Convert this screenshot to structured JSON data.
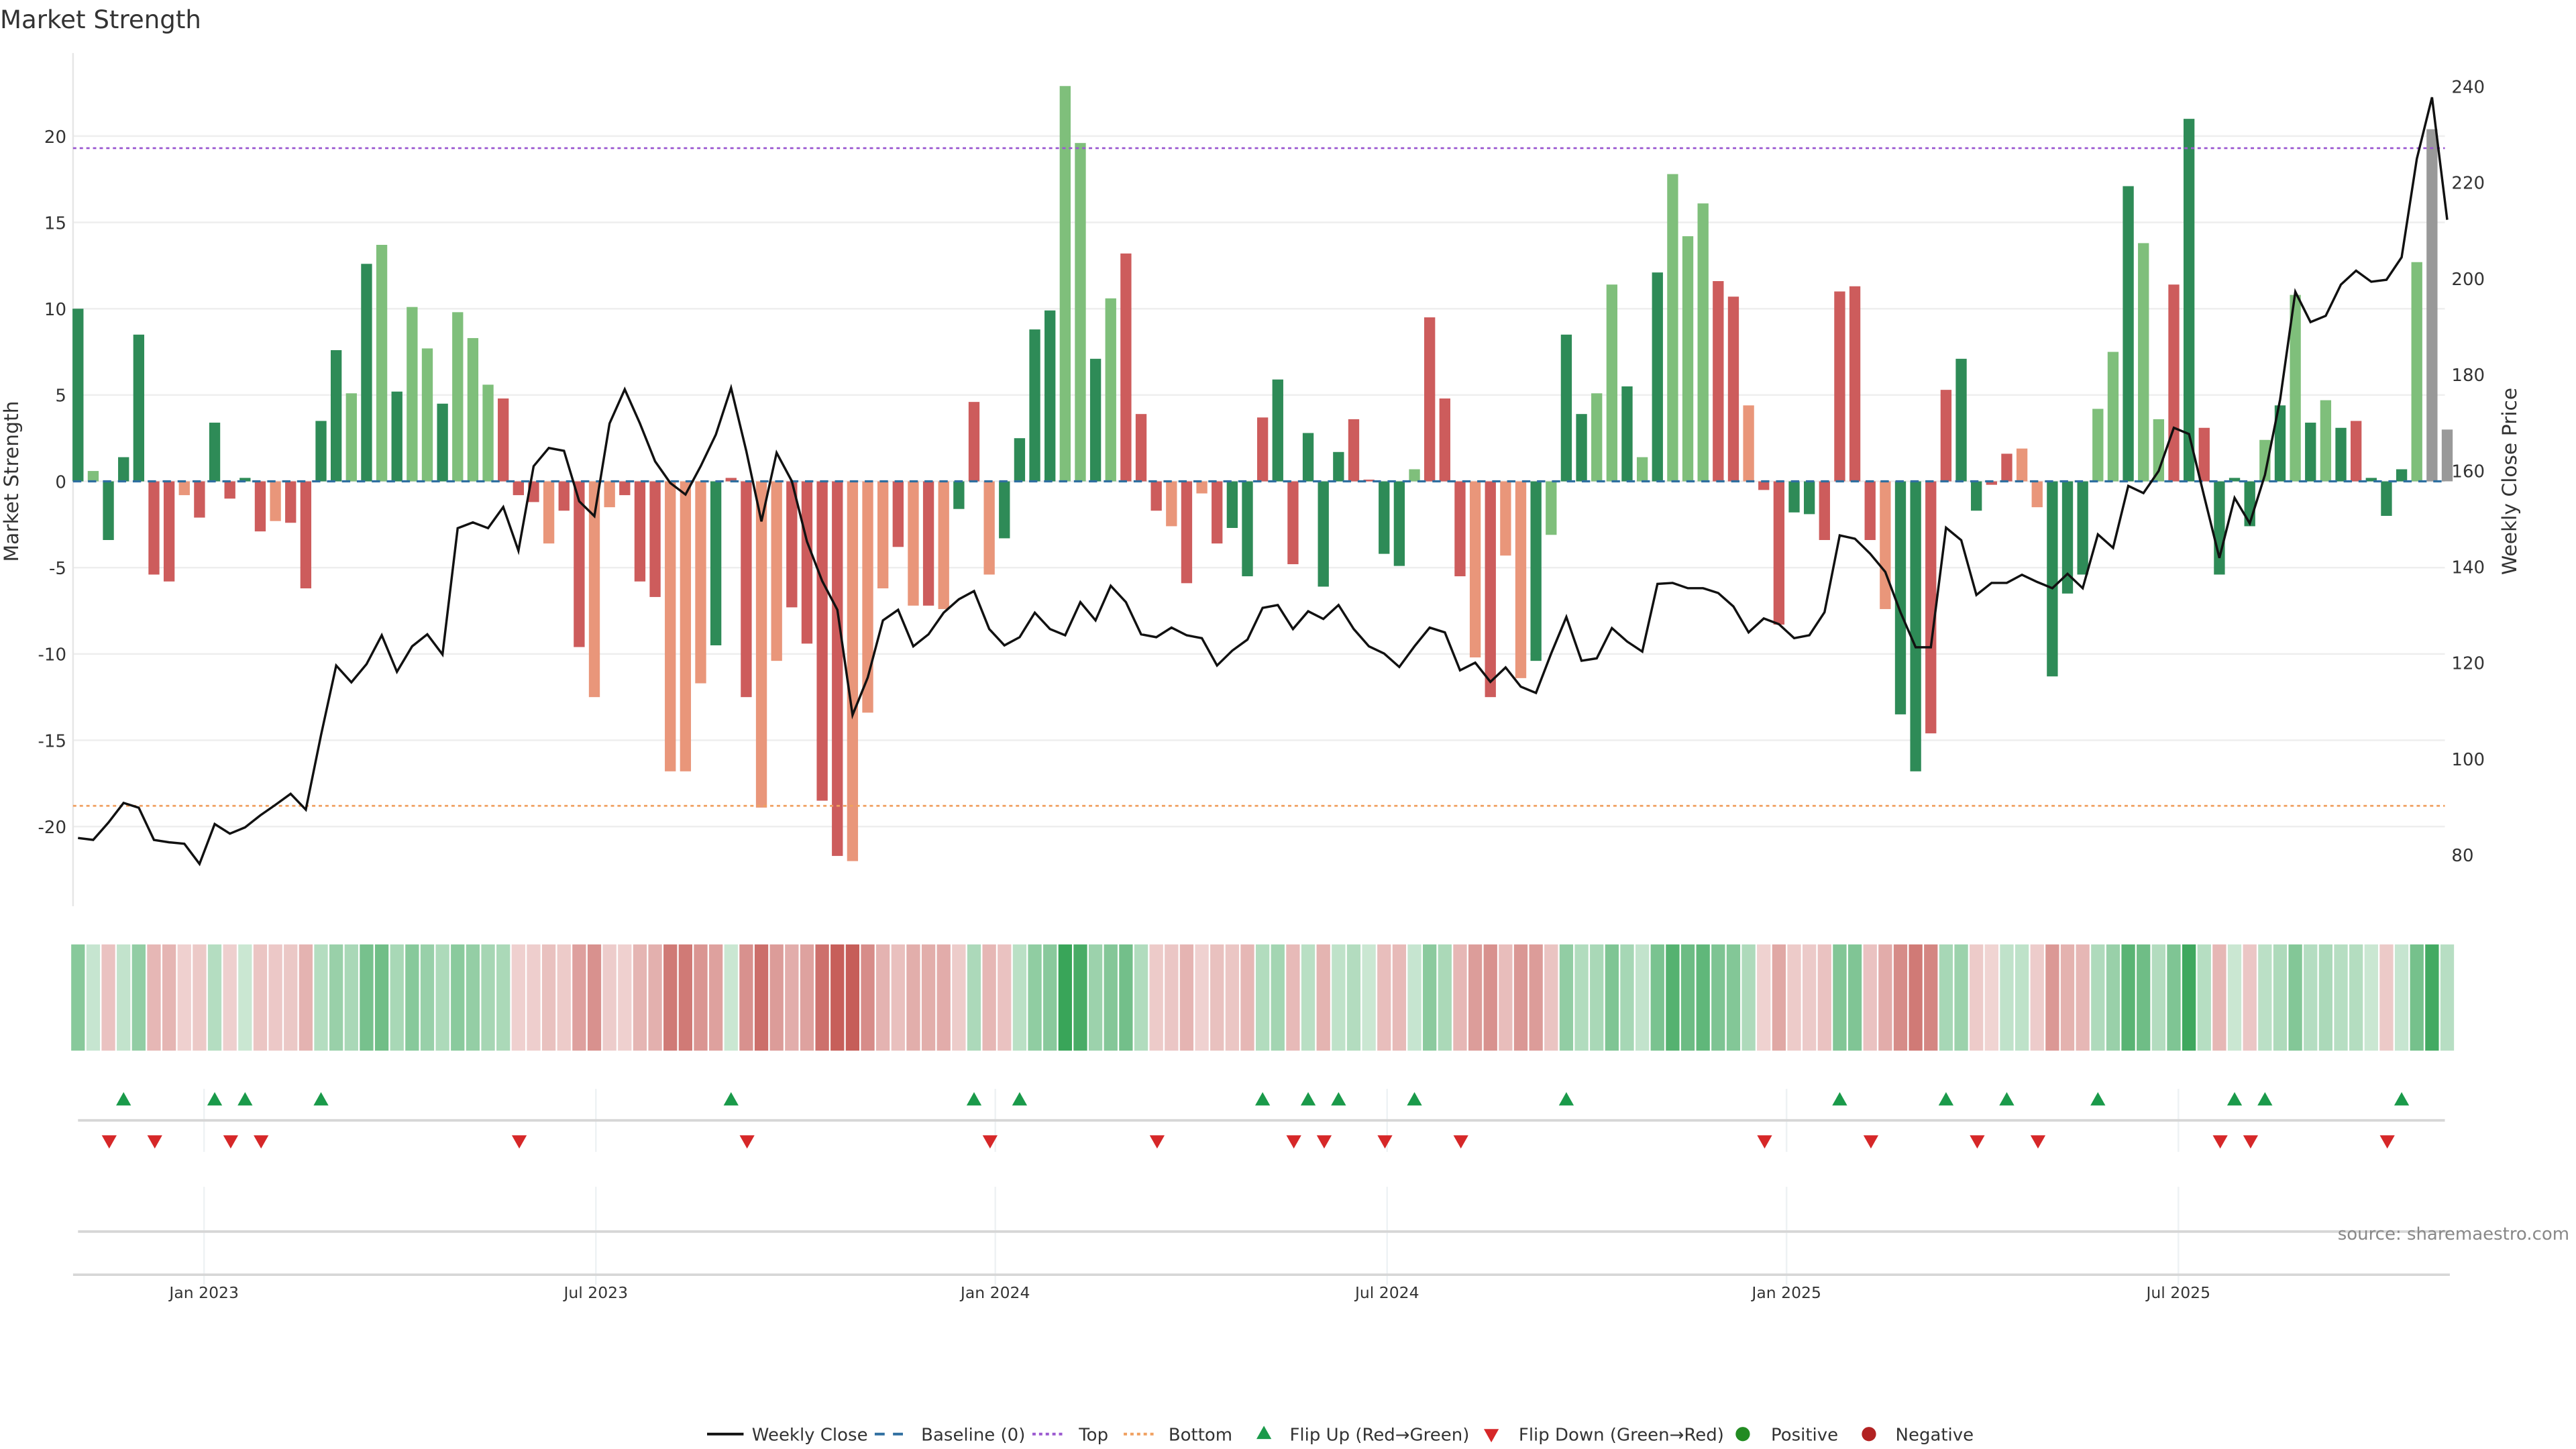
{
  "title": "Market Strength",
  "source": "source: sharemaestro.com",
  "chart_data": {
    "type": "bar",
    "title": "Market Strength",
    "ylabel": "Market Strength",
    "y2label": "Weekly Close Price",
    "ylim": [
      -25,
      26.5
    ],
    "y2lim": [
      69.6,
      248
    ],
    "yticks": [
      -20,
      -15,
      -10,
      -5,
      0,
      5,
      10,
      15,
      20
    ],
    "y2ticks": [
      80,
      100,
      120,
      140,
      160,
      180,
      200,
      220,
      240
    ],
    "xticks": [
      {
        "label": "Jan 2023",
        "week": 8.3
      },
      {
        "label": "Jul 2023",
        "week": 34.1
      },
      {
        "label": "Jan 2024",
        "week": 60.4
      },
      {
        "label": "Jul 2024",
        "week": 86.2
      },
      {
        "label": "Jan 2025",
        "week": 112.5
      },
      {
        "label": "Jul 2025",
        "week": 138.3
      }
    ],
    "top_level": 19.3,
    "bottom_level": -18.8,
    "strength": [
      10.0,
      0.6,
      -3.4,
      1.4,
      8.5,
      -5.4,
      -5.8,
      -0.8,
      -2.1,
      3.4,
      -1.0,
      0.2,
      -2.9,
      -2.3,
      -2.4,
      -6.2,
      3.5,
      7.6,
      5.1,
      12.6,
      13.7,
      5.2,
      10.1,
      7.7,
      4.5,
      9.8,
      8.3,
      5.6,
      4.8,
      -0.8,
      -1.2,
      -3.6,
      -1.7,
      -9.6,
      -12.5,
      -1.5,
      -0.8,
      -5.8,
      -6.7,
      -16.8,
      -16.8,
      -11.7,
      -9.5,
      0.2,
      -12.5,
      -18.9,
      -10.4,
      -7.3,
      -9.4,
      -18.5,
      -21.7,
      -22.0,
      -13.4,
      -6.2,
      -3.8,
      -7.2,
      -7.2,
      -7.4,
      -1.6,
      4.6,
      -5.4,
      -3.3,
      2.5,
      8.8,
      9.9,
      22.9,
      19.6,
      7.1,
      10.6,
      13.2,
      3.9,
      -1.7,
      -2.6,
      -5.9,
      -0.7,
      -3.6,
      -2.7,
      -5.5,
      3.7,
      5.9,
      -4.8,
      2.8,
      -6.1,
      1.7,
      3.6,
      0.1,
      -4.2,
      -4.9,
      0.7,
      9.5,
      4.8,
      -5.5,
      -10.2,
      -12.5,
      -4.3,
      -11.4,
      -10.4,
      -3.1,
      8.5,
      3.9,
      5.1,
      11.4,
      5.5,
      1.4,
      12.1,
      17.8,
      14.2,
      16.1,
      11.6,
      10.7,
      4.4,
      -0.5,
      -8.3,
      -1.8,
      -1.9,
      -3.4,
      11.0,
      11.3,
      -3.4,
      -7.4,
      -13.5,
      -16.8,
      -14.6,
      5.3,
      7.1,
      -1.7,
      -0.2,
      1.6,
      1.9,
      -1.5,
      -11.3,
      -6.5,
      -5.4,
      4.2,
      7.5,
      17.1,
      13.8,
      3.6,
      11.4,
      21.0,
      3.1,
      -5.4,
      0.2,
      -2.6,
      2.4,
      4.4,
      10.8,
      3.4,
      4.7,
      3.1,
      3.5,
      0.2,
      -2.0,
      0.7,
      12.7,
      20.4,
      3.0
    ],
    "shade": "dldddrrsrdrdrsrrddldldlldlllrrrsrrssrrrsssdrrssrrrrsssrsrsdrsddddlldlrrrsrsrddrdrdddrrddlrrrsrssdlddlldldlllrrsrrddrrrrsddrrddrrssdddlldllrdrdddldldldrdddl",
    "weekly_close": [
      83.5,
      83.1,
      86.7,
      90.8,
      89.8,
      83.1,
      82.6,
      82.3,
      78.1,
      86.4,
      84.4,
      85.7,
      88.2,
      90.4,
      92.7,
      89.4,
      104.9,
      119.4,
      115.9,
      119.7,
      125.7,
      118.1,
      123.4,
      125.9,
      121.7,
      148.0,
      149.2,
      148.0,
      152.4,
      143.3,
      160.9,
      164.7,
      164.1,
      153.6,
      150.5,
      169.8,
      176.9,
      169.8,
      161.9,
      157.4,
      155.0,
      160.9,
      167.5,
      177.2,
      164.1,
      149.4,
      163.7,
      157.8,
      145.2,
      137.0,
      131.0,
      109.1,
      116.9,
      128.8,
      131.0,
      123.4,
      125.9,
      130.4,
      133.2,
      134.9,
      127.0,
      123.6,
      125.3,
      130.4,
      127.0,
      125.7,
      132.6,
      128.8,
      136.0,
      132.6,
      125.9,
      125.3,
      127.3,
      125.7,
      125.1,
      119.4,
      122.5,
      124.8,
      131.4,
      132.0,
      127.0,
      130.7,
      129.1,
      132.0,
      127.0,
      123.4,
      121.9,
      119.1,
      123.4,
      127.3,
      126.3,
      118.4,
      120.0,
      116.0,
      119.0,
      115.0,
      113.7,
      121.9,
      129.5,
      120.4,
      120.9,
      127.2,
      124.4,
      122.3,
      136.4,
      136.6,
      135.5,
      135.5,
      134.5,
      131.7,
      126.3,
      129.2,
      128.0,
      125.1,
      125.7,
      130.5,
      146.5,
      145.8,
      142.7,
      138.9,
      130.5,
      123.2,
      123.2,
      148.1,
      145.5,
      134.1,
      136.6,
      136.6,
      138.3,
      136.8,
      135.5,
      138.5,
      135.5,
      146.7,
      143.9,
      156.8,
      155.3,
      159.9,
      168.9,
      167.6,
      154.6,
      141.8,
      154.3,
      149.0,
      159.1,
      174.8,
      197.2,
      190.9,
      192.2,
      198.7,
      201.6,
      199.3,
      199.7,
      204.4,
      224.9,
      237.7,
      212.2
    ],
    "flip_up_weeks": [
      3,
      9,
      11,
      16,
      43,
      59,
      62,
      78,
      81,
      83,
      88,
      98,
      116,
      123,
      127,
      133,
      142,
      144,
      153
    ],
    "flip_down_weeks": [
      2,
      5,
      10,
      12,
      29,
      44,
      60,
      71,
      80,
      82,
      86,
      91,
      111,
      118,
      125,
      129,
      141,
      143,
      152
    ],
    "legend": {
      "position": "bottom-center",
      "items": [
        "Weekly Close",
        "Baseline (0)",
        "Top",
        "Bottom",
        "Flip Up (Red→Green)",
        "Flip Down (Green→Red)",
        "Positive",
        "Negative"
      ]
    },
    "colors": {
      "d": "#2e8b57",
      "l": "#7fbf7b",
      "r": "#cd5c5c",
      "s": "#e9967a",
      "line": "#111111",
      "baseline": "#2f6fa0",
      "top": "#9b59d0",
      "bottom": "#f0a060",
      "up": "#1a9a4a",
      "down": "#d62728",
      "positive": "#228b22",
      "negative": "#b22222"
    }
  }
}
